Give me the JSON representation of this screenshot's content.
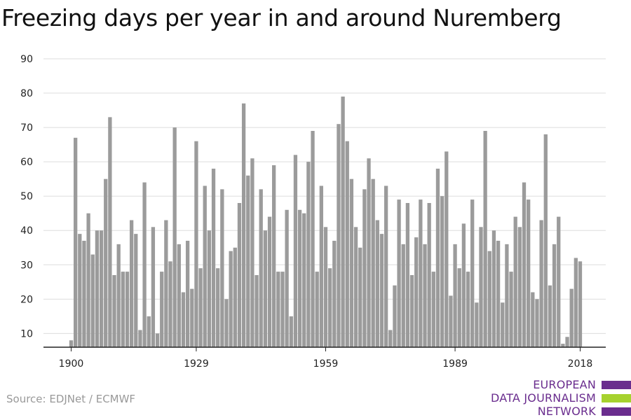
{
  "title": "Freezing days per year in and around Nuremberg",
  "source": "Source: EDJNet / ECMWF",
  "logo": {
    "lines": [
      "EUROPEAN",
      "DATA JOURNALISM",
      "NETWORK"
    ],
    "colors": [
      "#6a2d8e",
      "#a6d22e",
      "#6a2d8e"
    ]
  },
  "chart_data": {
    "type": "bar",
    "title": "Freezing days per year in and around Nuremberg",
    "x_start": 1900,
    "x_end": 2018,
    "ylim": [
      6,
      90
    ],
    "yticks": [
      10,
      20,
      30,
      40,
      50,
      60,
      70,
      80,
      90
    ],
    "xticks": [
      1900,
      1929,
      1959,
      1989,
      2018
    ],
    "grid": true,
    "bar_color": "#9b9b9b",
    "values": [
      8,
      67,
      39,
      37,
      45,
      33,
      40,
      40,
      55,
      73,
      27,
      36,
      28,
      28,
      43,
      39,
      11,
      54,
      15,
      41,
      10,
      28,
      43,
      31,
      70,
      36,
      22,
      37,
      23,
      66,
      29,
      53,
      40,
      58,
      29,
      52,
      20,
      34,
      35,
      48,
      77,
      56,
      61,
      27,
      52,
      40,
      44,
      59,
      28,
      28,
      46,
      15,
      62,
      46,
      45,
      60,
      69,
      28,
      53,
      41,
      29,
      37,
      71,
      79,
      66,
      55,
      41,
      35,
      52,
      61,
      55,
      43,
      39,
      53,
      11,
      24,
      49,
      36,
      48,
      27,
      38,
      49,
      36,
      48,
      28,
      58,
      50,
      63,
      21,
      36,
      29,
      42,
      28,
      49,
      19,
      41,
      69,
      34,
      40,
      37,
      19,
      36,
      28,
      44,
      41,
      54,
      49,
      22,
      20,
      43,
      68,
      24,
      36,
      44,
      7,
      9,
      23,
      32,
      31
    ]
  }
}
